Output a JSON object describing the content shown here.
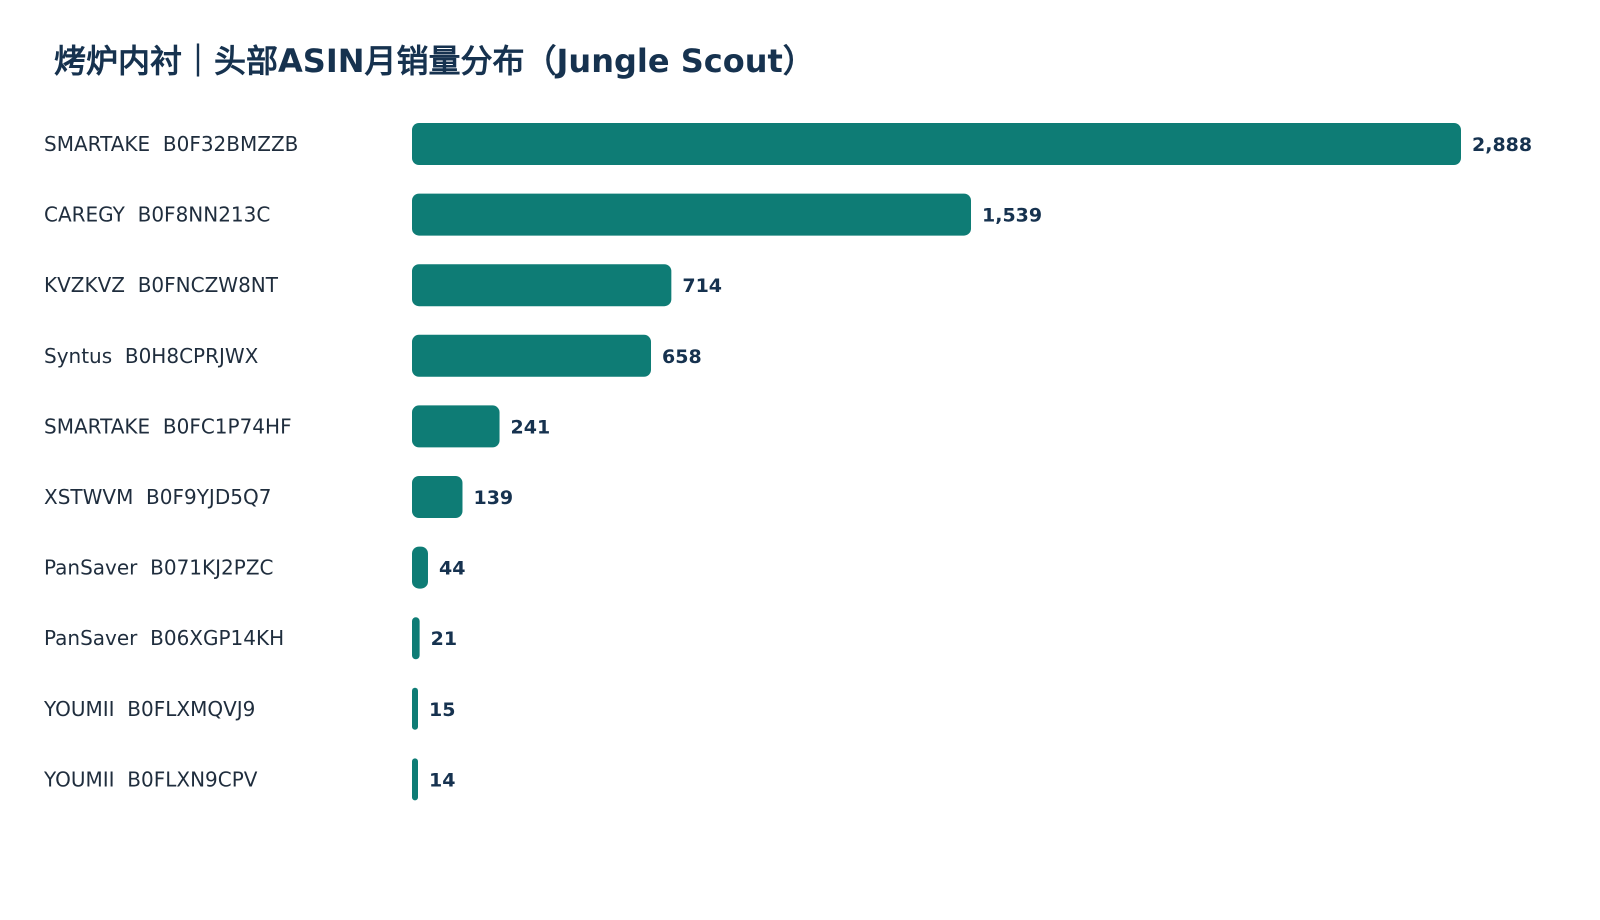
{
  "chart_data": {
    "type": "bar",
    "orientation": "horizontal",
    "title": "烤炉内衬｜头部ASIN月销量分布（Jungle Scout）",
    "xlabel": "",
    "ylabel": "",
    "categories": [
      "SMARTAKE  B0F32BMZZB",
      "CAREGY  B0F8NN213C",
      "KVZKVZ  B0FNCZW8NT",
      "Syntus  B0H8CPRJWX",
      "SMARTAKE  B0FC1P74HF",
      "XSTWVM  B0F9YJD5Q7",
      "PanSaver  B071KJ2PZC",
      "PanSaver  B06XGP14KH",
      "YOUMII  B0FLXMQVJ9",
      "YOUMII  B0FLXN9CPV"
    ],
    "values": [
      2888,
      1539,
      714,
      658,
      241,
      139,
      44,
      21,
      15,
      14
    ],
    "value_labels": [
      "2,888",
      "1,539",
      "714",
      "658",
      "241",
      "139",
      "44",
      "21",
      "15",
      "14"
    ],
    "xlim": [
      0,
      2888
    ],
    "grid": false,
    "legend": "none",
    "bar_color": "#0e7c75"
  }
}
